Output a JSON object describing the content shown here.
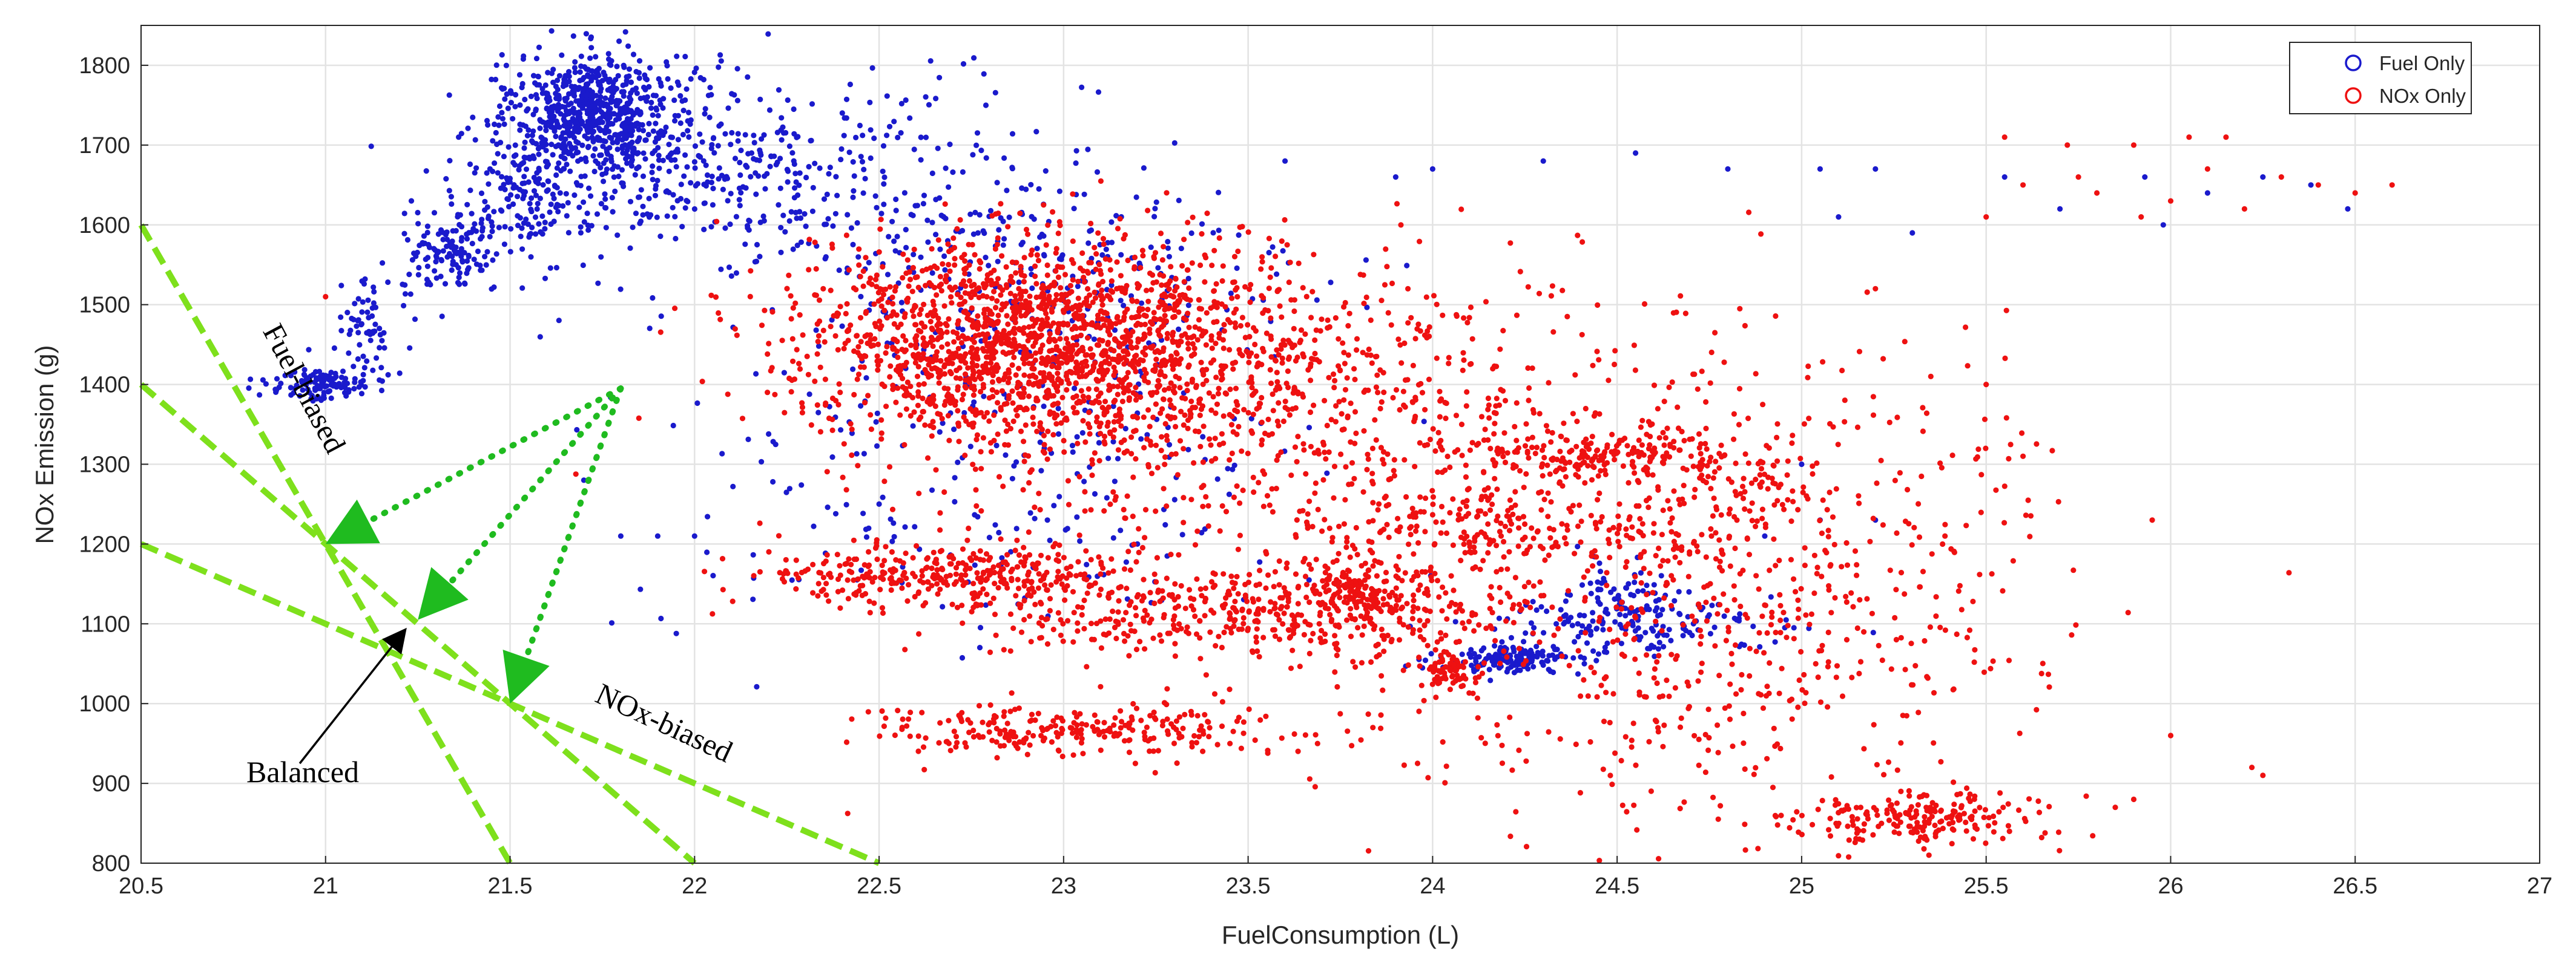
{
  "chart_data": {
    "type": "scatter",
    "xlabel": "FuelConsumption (L)",
    "ylabel": "NOx Emission (g)",
    "xlim": [
      20.5,
      27
    ],
    "ylim": [
      800,
      1850
    ],
    "x_ticks": [
      "20.5",
      "21",
      "21.5",
      "22",
      "22.5",
      "23",
      "23.5",
      "24",
      "24.5",
      "25",
      "25.5",
      "26",
      "26.5",
      "27"
    ],
    "y_ticks": [
      "800",
      "900",
      "1000",
      "1100",
      "1200",
      "1300",
      "1400",
      "1500",
      "1600",
      "1700",
      "1800"
    ],
    "grid": true,
    "legend_position": "top-right",
    "series": [
      {
        "name": "Fuel Only",
        "color": "#1a1acc",
        "clusters": [
          {
            "cx": 21.72,
            "cy": 1745,
            "sx": 0.1,
            "sy": 35,
            "n": 520
          },
          {
            "cx": 21.85,
            "cy": 1700,
            "sx": 0.25,
            "sy": 55,
            "n": 380
          },
          {
            "cx": 22.4,
            "cy": 1640,
            "sx": 0.35,
            "sy": 70,
            "n": 300
          },
          {
            "cx": 21.35,
            "cy": 1570,
            "sx": 0.07,
            "sy": 28,
            "n": 140
          },
          {
            "cx": 21.55,
            "cy": 1640,
            "sx": 0.08,
            "sy": 35,
            "n": 120
          },
          {
            "cx": 21.12,
            "cy": 1470,
            "sx": 0.04,
            "sy": 30,
            "n": 70
          },
          {
            "cx": 20.98,
            "cy": 1400,
            "sx": 0.07,
            "sy": 10,
            "n": 110
          },
          {
            "cx": 23.0,
            "cy": 1530,
            "sx": 0.35,
            "sy": 60,
            "n": 180
          },
          {
            "cx": 22.8,
            "cy": 1300,
            "sx": 0.45,
            "sy": 120,
            "n": 260
          },
          {
            "cx": 24.2,
            "cy": 1055,
            "sx": 0.09,
            "sy": 8,
            "n": 140
          },
          {
            "cx": 24.55,
            "cy": 1120,
            "sx": 0.12,
            "sy": 30,
            "n": 120
          },
          {
            "cx": 24.5,
            "cy": 1095,
            "sx": 0.22,
            "sy": 14,
            "n": 90
          }
        ],
        "scatter_points": [
          [
            24.0,
            1670
          ],
          [
            24.3,
            1680
          ],
          [
            24.8,
            1670
          ],
          [
            25.05,
            1670
          ],
          [
            25.1,
            1610
          ],
          [
            25.2,
            1670
          ],
          [
            25.3,
            1590
          ],
          [
            25.55,
            1660
          ],
          [
            25.7,
            1620
          ],
          [
            25.93,
            1660
          ],
          [
            25.98,
            1600
          ],
          [
            26.1,
            1640
          ],
          [
            26.25,
            1660
          ],
          [
            26.38,
            1650
          ],
          [
            26.48,
            1620
          ],
          [
            24.55,
            1690
          ],
          [
            23.9,
            1660
          ],
          [
            23.6,
            1680
          ],
          [
            25.05,
            1230
          ],
          [
            25.0,
            1300
          ],
          [
            24.9,
            1210
          ],
          [
            25.2,
            1230
          ],
          [
            21.9,
            1210
          ],
          [
            22.0,
            1210
          ],
          [
            21.7,
            1280
          ],
          [
            21.8,
            1210
          ],
          [
            23.2,
            1200
          ],
          [
            22.5,
            1250
          ]
        ]
      },
      {
        "name": "NOx Only",
        "color": "#ee1111",
        "clusters": [
          {
            "cx": 22.9,
            "cy": 1460,
            "sx": 0.3,
            "sy": 60,
            "n": 1500
          },
          {
            "cx": 23.4,
            "cy": 1420,
            "sx": 0.45,
            "sy": 75,
            "n": 700
          },
          {
            "cx": 22.7,
            "cy": 1160,
            "sx": 0.25,
            "sy": 20,
            "n": 350
          },
          {
            "cx": 23.5,
            "cy": 1110,
            "sx": 0.35,
            "sy": 25,
            "n": 380
          },
          {
            "cx": 23.8,
            "cy": 1140,
            "sx": 0.08,
            "sy": 25,
            "n": 150
          },
          {
            "cx": 23.0,
            "cy": 965,
            "sx": 0.3,
            "sy": 15,
            "n": 250
          },
          {
            "cx": 24.4,
            "cy": 1310,
            "sx": 0.2,
            "sy": 12,
            "n": 150
          },
          {
            "cx": 24.1,
            "cy": 1230,
            "sx": 0.15,
            "sy": 25,
            "n": 110
          },
          {
            "cx": 24.05,
            "cy": 1040,
            "sx": 0.04,
            "sy": 12,
            "n": 70
          },
          {
            "cx": 24.5,
            "cy": 1160,
            "sx": 0.5,
            "sy": 140,
            "n": 600
          },
          {
            "cx": 25.3,
            "cy": 860,
            "sx": 0.18,
            "sy": 16,
            "n": 200
          },
          {
            "cx": 24.7,
            "cy": 1250,
            "sx": 0.2,
            "sy": 50,
            "n": 120
          },
          {
            "cx": 25.0,
            "cy": 1150,
            "sx": 0.35,
            "sy": 150,
            "n": 250
          },
          {
            "cx": 23.5,
            "cy": 1250,
            "sx": 0.6,
            "sy": 120,
            "n": 350
          }
        ],
        "scatter_points": [
          [
            25.55,
            1710
          ],
          [
            25.72,
            1700
          ],
          [
            25.9,
            1700
          ],
          [
            26.05,
            1710
          ],
          [
            26.15,
            1710
          ],
          [
            26.3,
            1660
          ],
          [
            26.5,
            1640
          ],
          [
            26.6,
            1650
          ],
          [
            25.6,
            1650
          ],
          [
            25.8,
            1640
          ],
          [
            26.0,
            1630
          ],
          [
            26.2,
            1620
          ],
          [
            25.75,
            1660
          ],
          [
            25.92,
            1610
          ],
          [
            26.1,
            1670
          ],
          [
            25.5,
            1610
          ],
          [
            26.4,
            1650
          ],
          [
            21.0,
            1510
          ],
          [
            25.6,
            1310
          ],
          [
            25.95,
            1230
          ],
          [
            26.22,
            920
          ],
          [
            25.85,
            870
          ],
          [
            25.9,
            880
          ],
          [
            25.2,
            1520
          ],
          [
            25.35,
            1410
          ],
          [
            25.5,
            1400
          ],
          [
            26.0,
            960
          ],
          [
            26.25,
            910
          ]
        ]
      }
    ],
    "annotations": {
      "fuel_biased": "Fuel-biased",
      "nox_biased": "NOx-biased",
      "balanced": "Balanced"
    },
    "overlay_lines": {
      "color": "#7ee01c",
      "arrow_color": "#1fbb1f",
      "lines": [
        [
          [
            20.5,
            1600
          ],
          [
            21.5,
            800
          ]
        ],
        [
          [
            20.5,
            1400
          ],
          [
            22.0,
            800
          ]
        ],
        [
          [
            20.5,
            1200
          ],
          [
            22.5,
            800
          ]
        ]
      ],
      "dotted_arrows": [
        {
          "from": [
            21.8,
            1395
          ],
          "to": [
            21.0,
            1200
          ]
        },
        {
          "from": [
            21.8,
            1395
          ],
          "to": [
            21.25,
            1105
          ]
        },
        {
          "from": [
            21.8,
            1395
          ],
          "to": [
            21.5,
            1000
          ]
        }
      ],
      "balanced_arrow": {
        "from": [
          20.93,
          925
        ],
        "to": [
          21.22,
          1095
        ]
      }
    }
  }
}
